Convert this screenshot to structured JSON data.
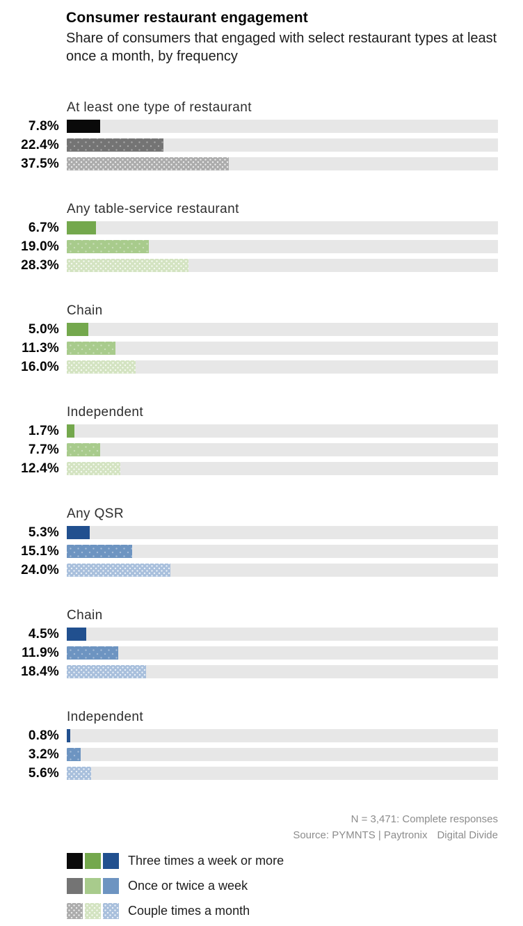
{
  "header": {
    "title": "Consumer restaurant engagement",
    "subtitle": "Share of consumers that engaged with select restaurant types at least once a month, by frequency"
  },
  "chart_data": {
    "type": "bar",
    "orientation": "horizontal",
    "unit": "percent",
    "xlim": [
      0,
      100
    ],
    "axis_visible": false,
    "legend_position": "bottom-left",
    "frequencies": [
      "Three times a week or more",
      "Once or twice a week",
      "Couple times a month"
    ],
    "groups": [
      {
        "label": "At least one type of restaurant",
        "palette": "gray",
        "values": [
          7.8,
          22.4,
          37.5
        ],
        "display": [
          "7.8%",
          "22.4%",
          "37.5%"
        ]
      },
      {
        "label": "Any table-service restaurant",
        "palette": "green",
        "values": [
          6.7,
          19.0,
          28.3
        ],
        "display": [
          "6.7%",
          "19.0%",
          "28.3%"
        ]
      },
      {
        "label": "Chain",
        "palette": "green",
        "values": [
          5.0,
          11.3,
          16.0
        ],
        "display": [
          "5.0%",
          "11.3%",
          "16.0%"
        ]
      },
      {
        "label": "Independent",
        "palette": "green",
        "values": [
          1.7,
          7.7,
          12.4
        ],
        "display": [
          "1.7%",
          "7.7%",
          "12.4%"
        ]
      },
      {
        "label": "Any QSR",
        "palette": "blue",
        "values": [
          5.3,
          15.1,
          24.0
        ],
        "display": [
          "5.3%",
          "15.1%",
          "24.0%"
        ]
      },
      {
        "label": "Chain",
        "palette": "blue",
        "values": [
          4.5,
          11.9,
          18.4
        ],
        "display": [
          "4.5%",
          "11.9%",
          "18.4%"
        ]
      },
      {
        "label": "Independent",
        "palette": "blue",
        "values": [
          0.8,
          3.2,
          5.6
        ],
        "display": [
          "0.8%",
          "3.2%",
          "5.6%"
        ]
      }
    ],
    "colors": {
      "track": "#e7e7e7",
      "gray": [
        "#0a0a0a",
        "#747474",
        "#acacac"
      ],
      "green": [
        "#74a84d",
        "#a8cb8c",
        "#d3e3c1"
      ],
      "blue": [
        "#21508f",
        "#6d94c1",
        "#a8bfdc"
      ]
    }
  },
  "footer": {
    "note": "N = 3,471: Complete responses",
    "source_prefix": "Source: PYMNTS | Paytronix",
    "source_suffix": "Digital Divide"
  },
  "legend": {
    "rows": [
      {
        "label": "Three times a week or more"
      },
      {
        "label": "Once or twice a week"
      },
      {
        "label": "Couple times a month"
      }
    ]
  }
}
